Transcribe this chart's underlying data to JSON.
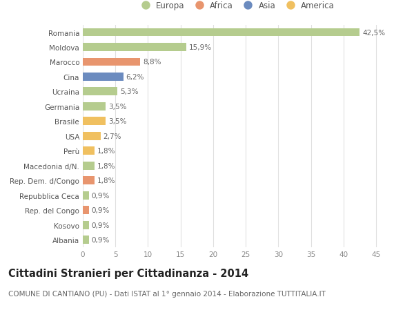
{
  "categories": [
    "Albania",
    "Kosovo",
    "Rep. del Congo",
    "Repubblica Ceca",
    "Rep. Dem. d/Congo",
    "Macedonia d/N.",
    "Perù",
    "USA",
    "Brasile",
    "Germania",
    "Ucraina",
    "Cina",
    "Marocco",
    "Moldova",
    "Romania"
  ],
  "values": [
    0.9,
    0.9,
    0.9,
    0.9,
    1.8,
    1.8,
    1.8,
    2.7,
    3.5,
    3.5,
    5.3,
    6.2,
    8.8,
    15.9,
    42.5
  ],
  "colors": [
    "#b5cc8e",
    "#b5cc8e",
    "#e8956e",
    "#b5cc8e",
    "#e8956e",
    "#b5cc8e",
    "#f0c060",
    "#f0c060",
    "#f0c060",
    "#b5cc8e",
    "#b5cc8e",
    "#6b8bbf",
    "#e8956e",
    "#b5cc8e",
    "#b5cc8e"
  ],
  "labels": [
    "0,9%",
    "0,9%",
    "0,9%",
    "0,9%",
    "1,8%",
    "1,8%",
    "1,8%",
    "2,7%",
    "3,5%",
    "3,5%",
    "5,3%",
    "6,2%",
    "8,8%",
    "15,9%",
    "42,5%"
  ],
  "legend_labels": [
    "Europa",
    "Africa",
    "Asia",
    "America"
  ],
  "legend_colors": [
    "#b5cc8e",
    "#e8956e",
    "#6b8bbf",
    "#f0c060"
  ],
  "title": "Cittadini Stranieri per Cittadinanza - 2014",
  "subtitle": "COMUNE DI CANTIANO (PU) - Dati ISTAT al 1° gennaio 2014 - Elaborazione TUTTITALIA.IT",
  "xlim": [
    0,
    47
  ],
  "xticks": [
    0,
    5,
    10,
    15,
    20,
    25,
    30,
    35,
    40,
    45
  ],
  "bg_color": "#ffffff",
  "grid_color": "#e0e0e0",
  "bar_height": 0.55,
  "title_fontsize": 10.5,
  "subtitle_fontsize": 7.5,
  "label_fontsize": 7.5,
  "tick_fontsize": 7.5,
  "legend_fontsize": 8.5
}
